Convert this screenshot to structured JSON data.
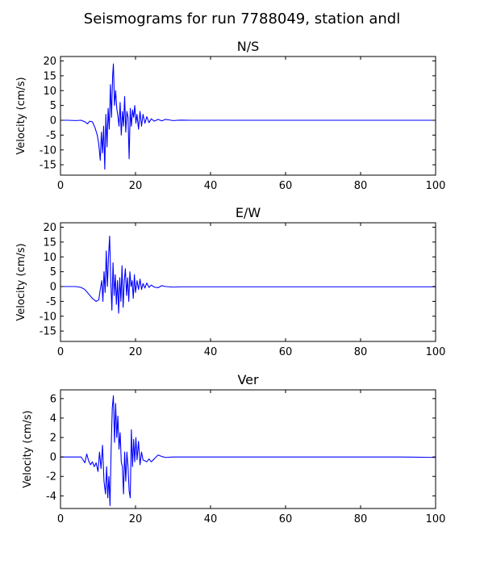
{
  "figure": {
    "title": "Seismograms for run 7788049, station andl"
  },
  "chart_data": [
    {
      "type": "line",
      "title": "N/S",
      "xlabel": "",
      "ylabel": "Velocity (cm/s)",
      "xlim": [
        0,
        100
      ],
      "ylim": [
        -18.5,
        21.5
      ],
      "xticks": [
        0,
        20,
        40,
        60,
        80,
        100
      ],
      "yticks": [
        -15,
        -10,
        -5,
        0,
        5,
        10,
        15,
        20
      ],
      "grid": false,
      "color": "#0000ff",
      "series": [
        {
          "x": [
            0,
            2,
            4,
            5.5,
            6.5,
            7.2,
            7.8,
            8.5,
            9.2,
            9.8,
            10.2,
            10.6,
            10.9,
            11.2,
            11.5,
            11.8,
            12.1,
            12.4,
            12.7,
            13.0,
            13.3,
            13.6,
            13.9,
            14.1,
            14.4,
            14.7,
            15.0,
            15.3,
            15.6,
            15.9,
            16.2,
            16.5,
            16.8,
            17.1,
            17.4,
            17.7,
            18.0,
            18.3,
            18.6,
            18.9,
            19.2,
            19.5,
            19.8,
            20.1,
            20.4,
            20.8,
            21.2,
            21.6,
            22.0,
            22.5,
            23.0,
            23.6,
            24.2,
            25.0,
            26.0,
            27.0,
            28.0,
            29.0,
            30.0,
            32.0,
            35.0,
            40.0,
            50.0,
            60.0,
            70.0,
            80.0,
            90.0,
            100.0
          ],
          "y": [
            0,
            0,
            -0.1,
            0,
            -0.5,
            -1.2,
            -0.3,
            -0.5,
            -2.5,
            -5.0,
            -8.0,
            -13.5,
            -4.0,
            -11.0,
            -2.0,
            -16.5,
            2.0,
            -9.0,
            4.0,
            -3.0,
            12.0,
            1.0,
            15.0,
            19.0,
            5.0,
            10.0,
            4.0,
            1.5,
            -2.0,
            6.0,
            -5.0,
            3.0,
            -2.0,
            8.0,
            -4.0,
            3.0,
            1.0,
            -13.0,
            4.0,
            -2.0,
            3.5,
            1.0,
            5.0,
            -1.0,
            2.0,
            -3.0,
            3.0,
            -2.0,
            2.0,
            -1.0,
            1.2,
            -0.8,
            0.5,
            -0.3,
            0.3,
            -0.2,
            0.3,
            0.1,
            -0.1,
            0.05,
            0,
            0,
            0,
            0,
            0,
            0,
            0,
            0
          ]
        }
      ]
    },
    {
      "type": "line",
      "title": "E/W",
      "xlabel": "",
      "ylabel": "Velocity (cm/s)",
      "xlim": [
        0,
        100
      ],
      "ylim": [
        -18.5,
        21.5
      ],
      "xticks": [
        0,
        20,
        40,
        60,
        80,
        100
      ],
      "yticks": [
        -15,
        -10,
        -5,
        0,
        5,
        10,
        15,
        20
      ],
      "grid": false,
      "color": "#0000ff",
      "series": [
        {
          "x": [
            0,
            2,
            4,
            5.5,
            6.5,
            7.5,
            8.5,
            9.5,
            10.2,
            10.6,
            11.0,
            11.3,
            11.6,
            11.9,
            12.2,
            12.5,
            12.8,
            13.1,
            13.4,
            13.7,
            14.0,
            14.3,
            14.6,
            14.9,
            15.2,
            15.5,
            15.8,
            16.1,
            16.4,
            16.7,
            17.0,
            17.3,
            17.6,
            17.9,
            18.2,
            18.5,
            18.8,
            19.1,
            19.4,
            19.7,
            20.0,
            20.4,
            20.8,
            21.2,
            21.6,
            22.0,
            22.5,
            23.0,
            23.6,
            24.2,
            25.0,
            26.0,
            27.0,
            28.0,
            30.0,
            32.0,
            35.0,
            40.0,
            50.0,
            60.0,
            70.0,
            80.0,
            90.0,
            100.0
          ],
          "y": [
            0,
            0,
            0,
            -0.3,
            -1.0,
            -2.5,
            -4.0,
            -5.0,
            -4.5,
            -1.0,
            2.0,
            -5.0,
            5.0,
            -2.0,
            12.0,
            0.0,
            10.0,
            17.0,
            2.0,
            -8.0,
            8.0,
            -3.0,
            4.0,
            -6.0,
            2.0,
            -9.0,
            3.0,
            -5.0,
            7.0,
            -7.0,
            2.0,
            6.0,
            -3.0,
            3.0,
            -5.0,
            5.0,
            0.0,
            2.0,
            -4.0,
            4.0,
            -2.0,
            2.0,
            -1.0,
            2.5,
            -1.0,
            1.0,
            -0.5,
            1.2,
            -0.3,
            0.5,
            -0.2,
            -0.4,
            0.3,
            0.0,
            -0.2,
            -0.1,
            -0.1,
            -0.1,
            -0.1,
            -0.1,
            -0.1,
            -0.1,
            -0.1,
            -0.1
          ]
        }
      ]
    },
    {
      "type": "line",
      "title": "Ver",
      "xlabel": "",
      "ylabel": "Velocity (cm/s)",
      "xlim": [
        0,
        100
      ],
      "ylim": [
        -5.3,
        6.9
      ],
      "xticks": [
        0,
        20,
        40,
        60,
        80,
        100
      ],
      "yticks": [
        -4,
        -2,
        0,
        2,
        4,
        6
      ],
      "grid": false,
      "color": "#0000ff",
      "series": [
        {
          "x": [
            0,
            2,
            4,
            5.5,
            6.5,
            7.0,
            7.5,
            8.0,
            8.5,
            9.0,
            9.5,
            10.0,
            10.4,
            10.8,
            11.2,
            11.6,
            12.0,
            12.3,
            12.6,
            12.9,
            13.2,
            13.5,
            13.8,
            14.1,
            14.4,
            14.7,
            15.0,
            15.3,
            15.6,
            15.9,
            16.2,
            16.5,
            16.8,
            17.1,
            17.4,
            17.7,
            18.0,
            18.3,
            18.6,
            18.9,
            19.2,
            19.5,
            19.8,
            20.1,
            20.4,
            20.8,
            21.2,
            21.6,
            22.0,
            22.5,
            23.0,
            23.6,
            24.2,
            25.0,
            26.0,
            27.0,
            28.0,
            30.0,
            32.0,
            35.0,
            40.0,
            50.0,
            60.0,
            70.0,
            80.0,
            90.0,
            100.0
          ],
          "y": [
            0,
            0,
            0,
            0,
            -0.6,
            0.3,
            -0.4,
            -0.8,
            -0.5,
            -1.0,
            -0.6,
            -1.5,
            0.5,
            -1.2,
            1.2,
            -2.5,
            -3.8,
            -1.0,
            -4.2,
            -2.0,
            -5.0,
            0.8,
            5.0,
            6.3,
            1.5,
            5.5,
            2.0,
            4.2,
            0.8,
            2.5,
            -0.5,
            -1.0,
            -3.8,
            0.5,
            -2.5,
            0.5,
            -1.0,
            -3.5,
            -4.2,
            2.8,
            -1.0,
            1.8,
            -0.5,
            2.0,
            -0.3,
            1.6,
            -0.8,
            0.5,
            -0.3,
            -0.4,
            -0.5,
            -0.2,
            -0.5,
            -0.2,
            0.2,
            0.05,
            -0.05,
            0,
            0,
            0,
            0,
            0,
            0,
            0,
            0,
            0,
            -0.05
          ]
        }
      ]
    }
  ]
}
